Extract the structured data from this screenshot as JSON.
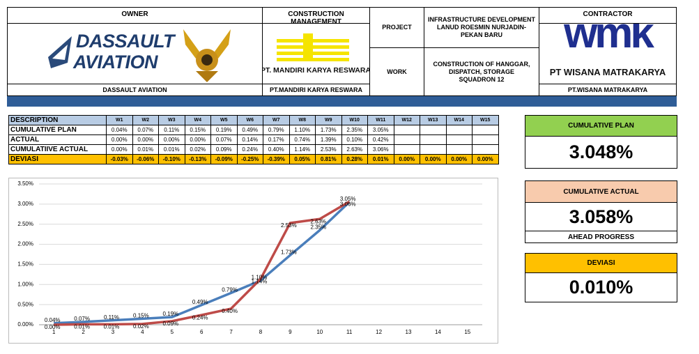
{
  "header": {
    "owner_label": "OWNER",
    "owner_logo": [
      "DASSAULT",
      "AVIATION"
    ],
    "owner_name": "DASSAULT AVIATION",
    "cm_label": "CONSTRUCTION MANAGEMENT",
    "cm_logo": "PT. MANDIRI KARYA RESWARA",
    "cm_name": "PT.MANDIRI KARYA RESWARA",
    "project_label": "PROJECT",
    "project": "INFRASTRUCTURE DEVELOPMENT LANUD ROESMIN NURJADIN-PEKAN BARU",
    "work_label": "WORK",
    "work": "CONSTRUCTION OF HANGGAR, DISPATCH, STORAGE SQUADRON 12",
    "contractor_label": "CONTRACTOR",
    "contractor_logo": "wmk",
    "contractor_logo_name": "PT WISANA MATRAKARYA",
    "contractor_name": "PT.WISANA MATRAKARYA"
  },
  "table": {
    "header": [
      "DESCRIPTION",
      "W1",
      "W2",
      "W3",
      "W4",
      "W5",
      "W6",
      "W7",
      "W8",
      "W9",
      "W10",
      "W11",
      "W12",
      "W13",
      "W14",
      "W15"
    ],
    "rows": [
      [
        "CUMULATIVE PLAN",
        "0.04%",
        "0.07%",
        "0.11%",
        "0.15%",
        "0.19%",
        "0.49%",
        "0.79%",
        "1.10%",
        "1.73%",
        "2.35%",
        "3.05%",
        null,
        null,
        null,
        null
      ],
      [
        "ACTUAL",
        "0.00%",
        "0.00%",
        "0.00%",
        "0.00%",
        "0.07%",
        "0.14%",
        "0.17%",
        "0.74%",
        "1.39%",
        "0.10%",
        "0.42%",
        null,
        null,
        null,
        null
      ],
      [
        "CUMULATIIVE ACTUAL",
        "0.00%",
        "0.01%",
        "0.01%",
        "0.02%",
        "0.09%",
        "0.24%",
        "0.40%",
        "1.14%",
        "2.53%",
        "2.63%",
        "3.06%",
        null,
        null,
        null,
        null
      ],
      [
        "DEVIASI",
        "-0.03%",
        "-0.06%",
        "-0.10%",
        "-0.13%",
        "-0.09%",
        "-0.25%",
        "-0.39%",
        "0.05%",
        "0.81%",
        "0.28%",
        "0.01%",
        "0.00%",
        "0.00%",
        "0.00%",
        "0.00%"
      ]
    ]
  },
  "summary": [
    {
      "label": "CUMULATIVE PLAN",
      "value": "3.048%"
    },
    {
      "label": "CUMULATIVE ACTUAL",
      "value": "3.058%",
      "note": "AHEAD PROGRESS"
    },
    {
      "label": "DEVIASI",
      "value": "0.010%"
    }
  ],
  "chart_data": {
    "type": "line",
    "categories": [
      1,
      2,
      3,
      4,
      5,
      6,
      7,
      8,
      9,
      10,
      11,
      12,
      13,
      14,
      15
    ],
    "series": [
      {
        "color": "#4a7ebb",
        "values": [
          0.04,
          0.07,
          0.11,
          0.15,
          0.19,
          0.49,
          0.79,
          1.1,
          1.73,
          2.35,
          3.05,
          null,
          null,
          null,
          null
        ],
        "value_labels": [
          "0.04%",
          "0.07%",
          "0.11%",
          "0.15%",
          "0.19%",
          "0.49%",
          "0.79%",
          "1.10%",
          "1.73%",
          "2.35%",
          "3.05%",
          null,
          null,
          null,
          null
        ]
      },
      {
        "color": "#be4b48",
        "values": [
          0.0,
          0.01,
          0.01,
          0.02,
          0.09,
          0.24,
          0.4,
          1.14,
          2.53,
          2.63,
          3.06,
          null,
          null,
          null,
          null
        ],
        "value_labels": [
          "0.00%",
          "0.01%",
          "0.01%",
          "0.02%",
          "0.09%",
          "0.24%",
          "0.40%",
          "1.14%",
          "2.53%",
          "2.63%",
          "3.06%",
          null,
          null,
          null,
          null
        ]
      }
    ],
    "ylim": [
      0,
      3.5
    ],
    "yticks": [
      {
        "value": 0,
        "label": "0.00%"
      },
      {
        "value": 0.5,
        "label": "0.50%"
      },
      {
        "value": 1,
        "label": "1.00%"
      },
      {
        "value": 1.5,
        "label": "1.50%"
      },
      {
        "value": 2,
        "label": "2.00%"
      },
      {
        "value": 2.5,
        "label": "2.50%"
      },
      {
        "value": 3,
        "label": "3.00%"
      },
      {
        "value": 3.5,
        "label": "3.50%"
      }
    ],
    "grid": true
  }
}
